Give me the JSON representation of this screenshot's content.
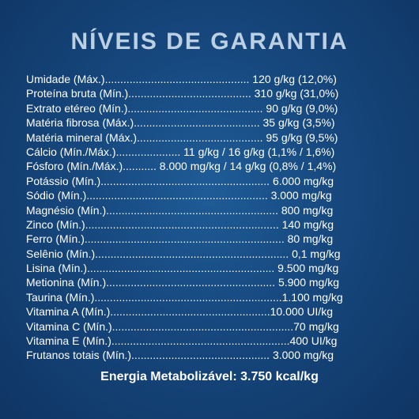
{
  "title": "NÍVEIS DE GARANTIA",
  "rows": [
    "Umidade (Máx.)............................................... 120 g/kg (12,0%)",
    "Proteína bruta (Mín.)........................................ 310 g/kg (31,0%)",
    "Extrato etéreo (Mín.)............................................ 90 g/kg (9,0%)",
    "Matéria fibrosa (Máx.)......................................... 35 g/kg (3,5%)",
    "Matéria mineral (Máx.)......................................... 95 g/kg (9,5%)",
    "Cálcio (Mín./Máx.)..................... 11 g/kg / 16 g/kg (1,1% / 1,6%)",
    "Fósforo (Mín./Máx.)........... 8.000 mg/kg / 14 g/kg (0,8% / 1,4%)",
    "Potássio (Mín.)....................................................... 6.000 mg/kg",
    "Sódio (Mín.)........................................................... 3.000 mg/kg",
    "Magnésio (Mín.)........................................................ 800 mg/kg",
    "Zinco (Mín.)............................................................... 140 mg/kg",
    "Ferro (Mín.)................................................................. 80 mg/kg",
    "Selênio (Mín.)............................................................... 0,1 mg/kg",
    "Lisina (Mín.)............................................................. 9.500 mg/kg",
    "Metionina (Mín.)....................................................... 5.900 mg/kg",
    "Taurina (Mín.).............................................................1.100 mg/kg",
    "Vitamina A (Mín.)....................................................10.000 UI/kg",
    "Vitamina C (Mín.)...........................................................70 mg/kg",
    "Vitamina E (Mín.)..........................................................400 UI/kg",
    "Frutanos totais (Mín.)............................................. 3.000 mg/kg"
  ],
  "footer": "Energia Metabolizável: 3.750 kcal/kg"
}
